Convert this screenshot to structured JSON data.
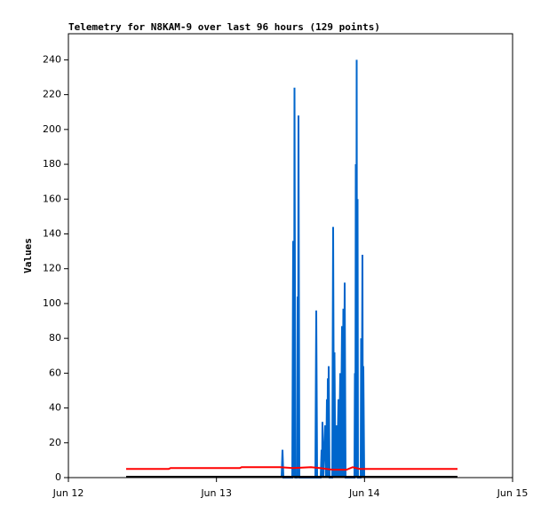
{
  "chart_data": {
    "type": "line",
    "title": "Telemetry for N8KAM-9 over last 96 hours (129 points)",
    "y_label": "Values",
    "xlim": [
      0,
      3
    ],
    "xticks": [
      {
        "value": 0,
        "label": "Jun 12"
      },
      {
        "value": 1,
        "label": "Jun 13"
      },
      {
        "value": 2,
        "label": "Jun 14"
      },
      {
        "value": 3,
        "label": "Jun 15"
      }
    ],
    "ylim": [
      0,
      255
    ],
    "yticks": [
      0,
      20,
      40,
      60,
      80,
      100,
      120,
      140,
      160,
      180,
      200,
      220,
      240
    ],
    "grid": false,
    "series": [
      {
        "color": "#0066cc",
        "x": [
          1.44,
          1.446,
          1.452,
          1.512,
          1.518,
          1.524,
          1.527,
          1.533,
          1.545,
          1.548,
          1.551,
          1.554,
          1.56,
          1.668,
          1.674,
          1.68,
          1.704,
          1.71,
          1.713,
          1.716,
          1.722,
          1.734,
          1.74,
          1.746,
          1.749,
          1.752,
          1.755,
          1.758,
          1.764,
          1.782,
          1.788,
          1.794,
          1.797,
          1.803,
          1.812,
          1.815,
          1.824,
          1.827,
          1.836,
          1.839,
          1.848,
          1.851,
          1.857,
          1.86,
          1.866,
          1.872,
          1.932,
          1.935,
          1.938,
          1.941,
          1.944,
          1.947,
          1.95,
          1.953,
          1.956,
          1.974,
          1.977,
          1.98,
          1.986,
          1.989,
          1.992,
          1.998
        ],
        "values": [
          0,
          16,
          0,
          0,
          136,
          0,
          224,
          0,
          0,
          104,
          0,
          208,
          0,
          0,
          96,
          0,
          0,
          16,
          0,
          32,
          0,
          30,
          0,
          45,
          0,
          57,
          0,
          64,
          0,
          0,
          144,
          0,
          72,
          0,
          30,
          0,
          45,
          0,
          60,
          0,
          87,
          0,
          97,
          0,
          112,
          0,
          0,
          60,
          0,
          180,
          0,
          240,
          0,
          160,
          0,
          0,
          80,
          0,
          128,
          0,
          64,
          0
        ]
      },
      {
        "color": "#ff0000",
        "x": [
          0.39,
          0.678,
          0.69,
          1.158,
          1.17,
          1.428,
          1.518,
          1.638,
          1.698,
          1.788,
          1.878,
          1.92,
          1.968,
          2.628
        ],
        "values": [
          5,
          5,
          5.5,
          5.5,
          6,
          6,
          5.5,
          6,
          5.5,
          4.5,
          4.5,
          6,
          5,
          5
        ]
      },
      {
        "color": "#000000",
        "x": [
          0.39,
          2.628
        ],
        "values": [
          0.5,
          0.5
        ]
      }
    ]
  }
}
